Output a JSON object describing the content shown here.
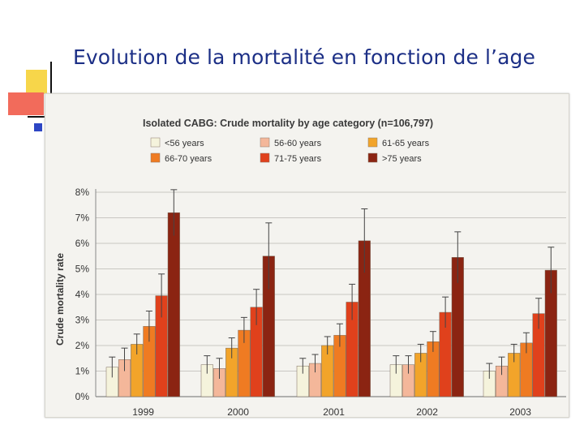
{
  "slide": {
    "title": "Evolution de la mortalité en fonction de l’age"
  },
  "chart_data": {
    "type": "bar",
    "title": "Isolated CABG: Crude mortality by age category (n=106,797)",
    "xlabel": "",
    "ylabel": "Crude mortality rate",
    "ylim": [
      0,
      8
    ],
    "yticks": [
      "0%",
      "1%",
      "2%",
      "3%",
      "4%",
      "5%",
      "6%",
      "7%",
      "8%"
    ],
    "grid": true,
    "legend_position": "top",
    "error_bars": true,
    "categories": [
      "1999",
      "2000",
      "2001",
      "2002",
      "2003"
    ],
    "series": [
      {
        "name": "<56 years",
        "color": "#f5f3dc",
        "values": [
          1.15,
          1.25,
          1.2,
          1.25,
          1.0
        ],
        "upper": [
          1.55,
          1.6,
          1.5,
          1.6,
          1.3
        ]
      },
      {
        "name": "56-60 years",
        "color": "#f4b79a",
        "values": [
          1.45,
          1.1,
          1.3,
          1.25,
          1.2
        ],
        "upper": [
          1.9,
          1.5,
          1.65,
          1.6,
          1.55
        ]
      },
      {
        "name": "61-65 years",
        "color": "#f2a42a",
        "values": [
          2.05,
          1.9,
          2.0,
          1.7,
          1.7
        ],
        "upper": [
          2.45,
          2.3,
          2.35,
          2.05,
          2.05
        ]
      },
      {
        "name": "66-70 years",
        "color": "#ef7b22",
        "values": [
          2.75,
          2.6,
          2.4,
          2.15,
          2.1
        ],
        "upper": [
          3.35,
          3.1,
          2.85,
          2.55,
          2.5
        ]
      },
      {
        "name": "71-75 years",
        "color": "#e0411c",
        "values": [
          3.95,
          3.5,
          3.7,
          3.3,
          3.25
        ],
        "upper": [
          4.8,
          4.2,
          4.4,
          3.9,
          3.85
        ]
      },
      {
        "name": ">75 years",
        "color": "#8b2412",
        "values": [
          7.2,
          5.5,
          6.1,
          5.45,
          4.95
        ],
        "upper": [
          8.1,
          6.8,
          7.35,
          6.45,
          5.85
        ]
      }
    ]
  }
}
